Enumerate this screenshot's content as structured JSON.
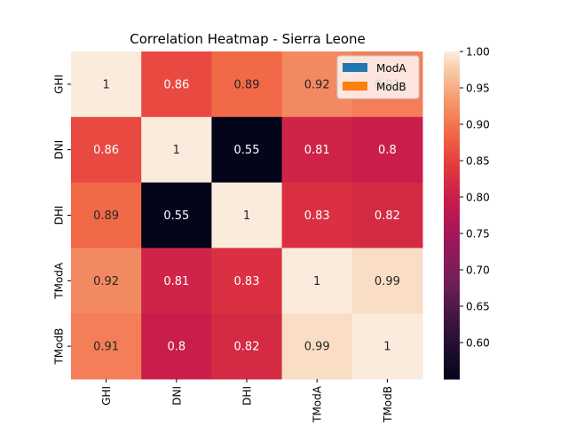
{
  "chart_data": {
    "type": "heatmap",
    "title": "Correlation Heatmap - Sierra Leone",
    "x_labels": [
      "GHI",
      "DNI",
      "DHI",
      "TModA",
      "TModB"
    ],
    "y_labels": [
      "GHI",
      "DNI",
      "DHI",
      "TModA",
      "TModB"
    ],
    "values": [
      [
        1,
        0.86,
        0.89,
        0.92,
        0.91
      ],
      [
        0.86,
        1,
        0.55,
        0.81,
        0.8
      ],
      [
        0.89,
        0.55,
        1,
        0.83,
        0.82
      ],
      [
        0.92,
        0.81,
        0.83,
        1,
        0.99
      ],
      [
        0.91,
        0.8,
        0.82,
        0.99,
        1
      ]
    ],
    "annotation_labels": [
      [
        "1",
        "0.86",
        "0.89",
        "0.92",
        "0.91"
      ],
      [
        "0.86",
        "1",
        "0.55",
        "0.81",
        "0.8"
      ],
      [
        "0.89",
        "0.55",
        "1",
        "0.83",
        "0.82"
      ],
      [
        "0.92",
        "0.81",
        "0.83",
        "1",
        "0.99"
      ],
      [
        "0.91",
        "0.8",
        "0.82",
        "0.99",
        "1"
      ]
    ],
    "colorbar": {
      "range": [
        0.55,
        1.0
      ],
      "ticks": [
        0.6,
        0.65,
        0.7,
        0.75,
        0.8,
        0.85,
        0.9,
        0.95,
        1.0
      ],
      "tick_labels": [
        "0.60",
        "0.65",
        "0.70",
        "0.75",
        "0.80",
        "0.85",
        "0.90",
        "0.95",
        "1.00"
      ],
      "colormap": "rocket"
    },
    "legend": {
      "placement": "top-right",
      "entries": [
        {
          "name": "ModA",
          "color": "#1f77b4"
        },
        {
          "name": "ModB",
          "color": "#ff7f0e"
        }
      ]
    }
  }
}
